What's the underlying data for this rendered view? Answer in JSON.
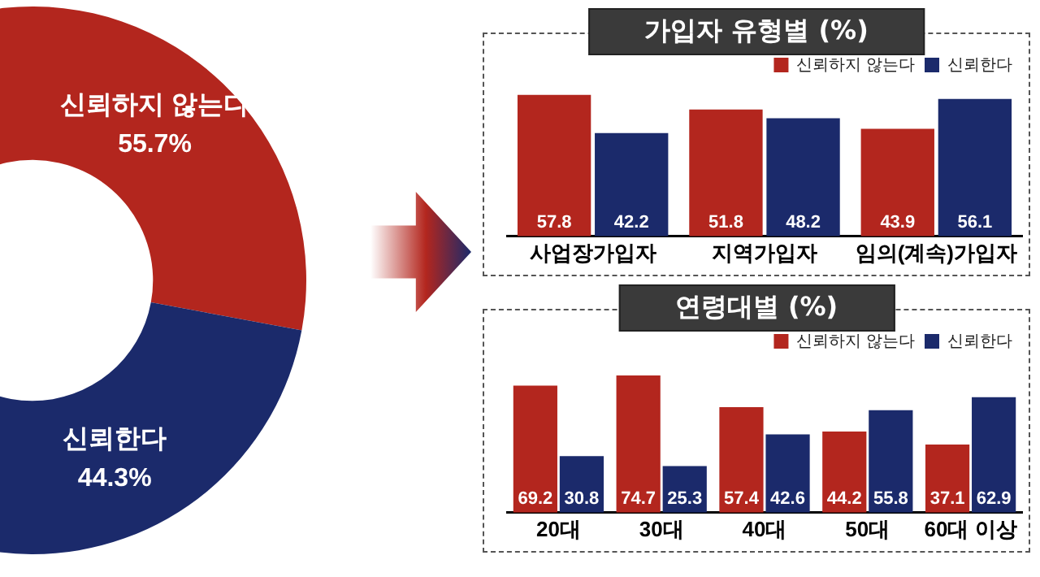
{
  "chart_data": [
    {
      "type": "donut",
      "categories": [
        "신뢰하지 않는다",
        "신뢰한다"
      ],
      "values": [
        55.7,
        44.3
      ],
      "colors": [
        "#b3261e",
        "#1b2a6b"
      ],
      "value_labels": [
        "55.7%",
        "44.3%"
      ]
    },
    {
      "type": "bar",
      "title": "가입자 유형별 (%)",
      "categories": [
        "사업장가입자",
        "지역가입자",
        "임의(계속)가입자"
      ],
      "series": [
        {
          "name": "신뢰하지 않는다",
          "color": "#b3261e",
          "values": [
            57.8,
            51.8,
            43.9
          ]
        },
        {
          "name": "신뢰한다",
          "color": "#1b2a6b",
          "values": [
            42.2,
            48.2,
            56.1
          ]
        }
      ],
      "data_labels": true,
      "legend": "top right",
      "tick_labels": "x",
      "grid": false
    },
    {
      "type": "bar",
      "title": "연령대별 (%)",
      "categories": [
        "20대",
        "30대",
        "40대",
        "50대",
        "60대 이상"
      ],
      "series": [
        {
          "name": "신뢰하지 않는다",
          "color": "#b3261e",
          "values": [
            69.2,
            74.7,
            57.4,
            44.2,
            37.1
          ]
        },
        {
          "name": "신뢰한다",
          "color": "#1b2a6b",
          "values": [
            30.8,
            25.3,
            42.6,
            55.8,
            62.9
          ]
        }
      ],
      "data_labels": true,
      "legend": "top right",
      "tick_labels": "x",
      "grid": false
    }
  ]
}
